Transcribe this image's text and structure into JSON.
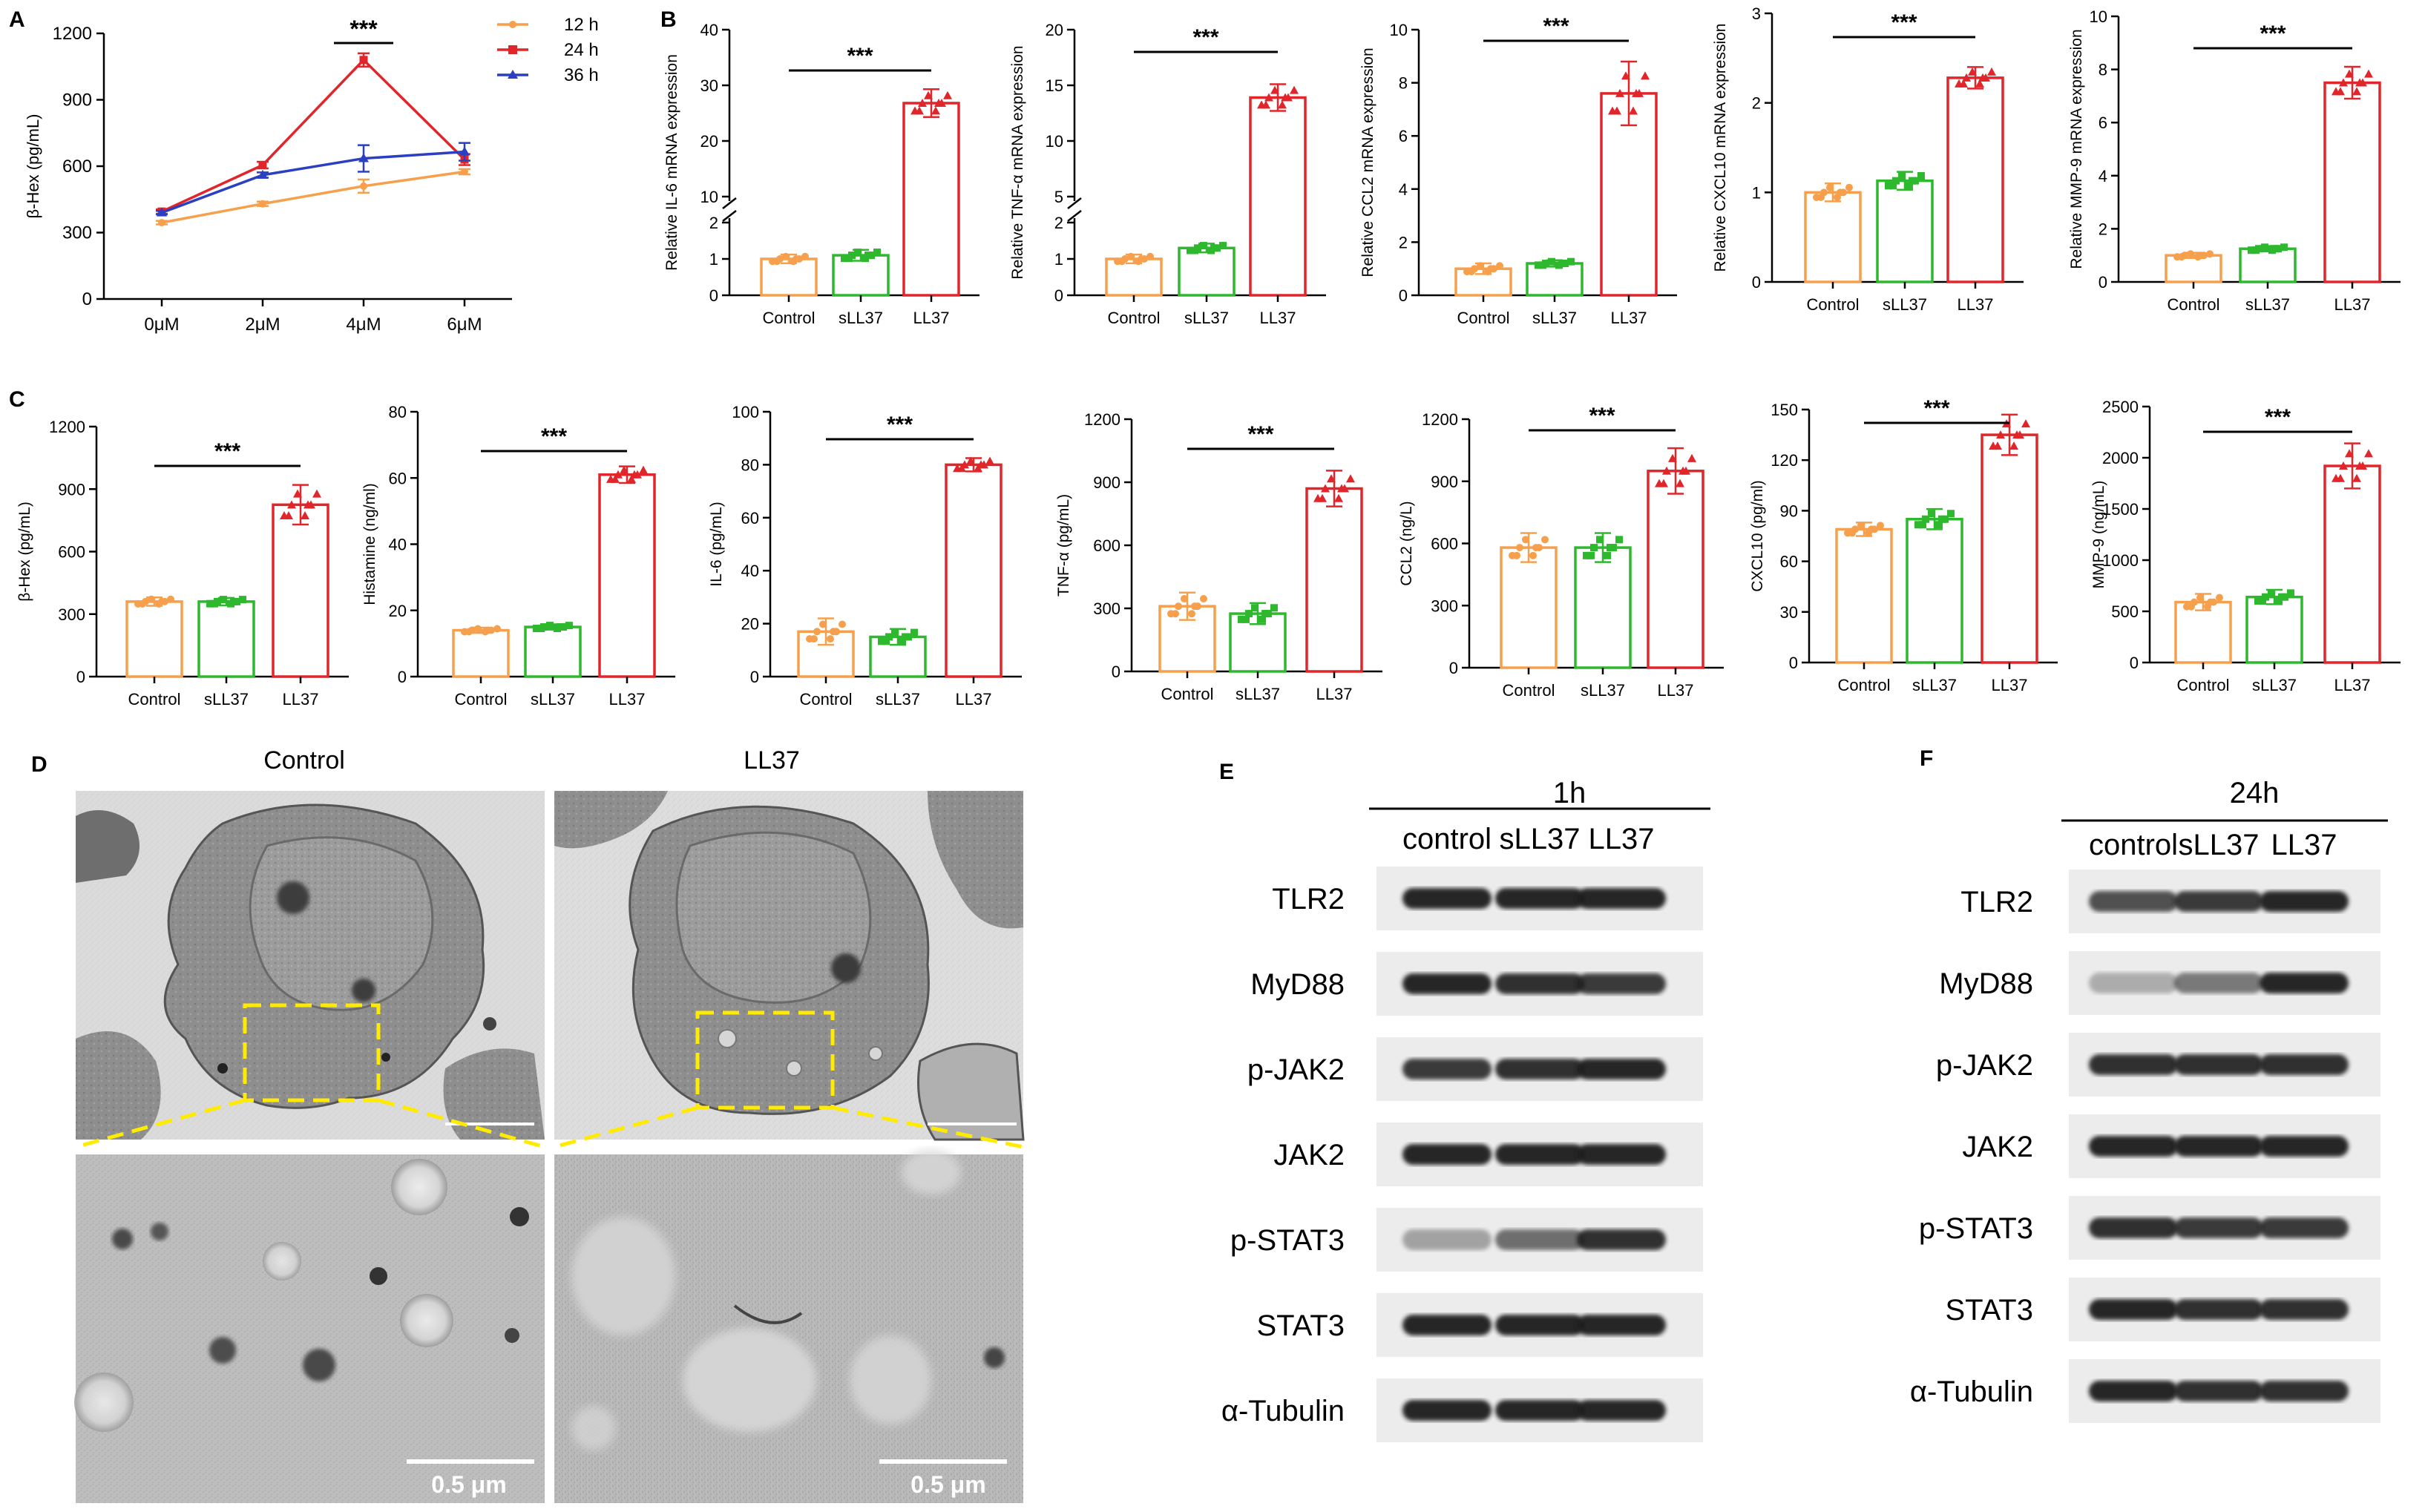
{
  "panel_letters": {
    "A": "A",
    "B": "B",
    "C": "C",
    "D": "D",
    "E": "E",
    "F": "F"
  },
  "group_labels": [
    "Control",
    "sLL37",
    "LL37"
  ],
  "group_colors": [
    "#f6a04d",
    "#2eb82e",
    "#e0262b"
  ],
  "significance": "***",
  "chart_data": [
    {
      "id": "A",
      "type": "line",
      "ylabel": "β-Hex (pg/mL)",
      "xlabel": "",
      "categories": [
        "0μM",
        "2μM",
        "4μM",
        "6μM"
      ],
      "ylim": [
        0,
        1200
      ],
      "yticks": [
        0,
        300,
        600,
        900,
        1200
      ],
      "legend_position": "top-right",
      "series": [
        {
          "name": "12 h",
          "color": "#f6a04d",
          "values": [
            345,
            430,
            510,
            575
          ],
          "errors": [
            8,
            10,
            30,
            12
          ]
        },
        {
          "name": "24 h",
          "color": "#e0262b",
          "values": [
            395,
            605,
            1080,
            630
          ],
          "errors": [
            10,
            15,
            30,
            25
          ]
        },
        {
          "name": "36 h",
          "color": "#2a3fc2",
          "values": [
            390,
            560,
            635,
            665
          ],
          "errors": [
            8,
            12,
            60,
            40
          ]
        }
      ],
      "annotations": [
        {
          "text": "***",
          "x": "4μM"
        }
      ]
    },
    {
      "id": "B1",
      "type": "bar",
      "ylabel": "Relative IL-6 mRNA expression",
      "categories": [
        "Control",
        "sLL37",
        "LL37"
      ],
      "values": [
        1.0,
        1.1,
        26.8
      ],
      "errors": [
        0.12,
        0.15,
        2.5
      ],
      "broken_axis": true,
      "lower_ticks": [
        0,
        1,
        2
      ],
      "upper_ticks": [
        10,
        20,
        30,
        40
      ],
      "upper_range": [
        10,
        40
      ],
      "significance": "***"
    },
    {
      "id": "B2",
      "type": "bar",
      "ylabel": "Relative TNF-α mRNA expression",
      "categories": [
        "Control",
        "sLL37",
        "LL37"
      ],
      "values": [
        1.0,
        1.3,
        13.9
      ],
      "errors": [
        0.12,
        0.12,
        1.2
      ],
      "broken_axis": true,
      "lower_ticks": [
        0,
        1,
        2
      ],
      "upper_ticks": [
        5,
        10,
        15,
        20
      ],
      "upper_range": [
        5,
        20
      ],
      "significance": "***"
    },
    {
      "id": "B3",
      "type": "bar",
      "ylabel": "Relative CCL2 mRNA expression",
      "categories": [
        "Control",
        "sLL37",
        "LL37"
      ],
      "values": [
        1.0,
        1.2,
        7.6
      ],
      "errors": [
        0.2,
        0.12,
        1.2
      ],
      "ylim": [
        0,
        10
      ],
      "yticks": [
        0,
        2,
        4,
        6,
        8,
        10
      ],
      "significance": "***"
    },
    {
      "id": "B4",
      "type": "bar",
      "ylabel": "Relative CXCL10 mRNA expression",
      "categories": [
        "Control",
        "sLL37",
        "LL37"
      ],
      "values": [
        1.0,
        1.13,
        2.28
      ],
      "errors": [
        0.1,
        0.1,
        0.12
      ],
      "ylim": [
        0,
        3
      ],
      "yticks": [
        0,
        1,
        2,
        3
      ],
      "significance": "***"
    },
    {
      "id": "B5",
      "type": "bar",
      "ylabel": "Relative MMP-9 mRNA expression",
      "categories": [
        "Control",
        "sLL37",
        "LL37"
      ],
      "values": [
        1.0,
        1.25,
        7.5
      ],
      "errors": [
        0.1,
        0.1,
        0.6
      ],
      "ylim": [
        0,
        10
      ],
      "yticks": [
        0,
        2,
        4,
        6,
        8,
        10
      ],
      "significance": "***"
    },
    {
      "id": "C1",
      "type": "bar",
      "ylabel": "β-Hex (pg/mL)",
      "categories": [
        "Control",
        "sLL37",
        "LL37"
      ],
      "values": [
        360,
        360,
        825
      ],
      "errors": [
        20,
        18,
        95
      ],
      "ylim": [
        0,
        1200
      ],
      "yticks": [
        0,
        300,
        600,
        900,
        1200
      ],
      "significance": "***"
    },
    {
      "id": "C2",
      "type": "bar",
      "ylabel": "Histamine (ng/ml)",
      "categories": [
        "Control",
        "sLL37",
        "LL37"
      ],
      "values": [
        14,
        15,
        61
      ],
      "errors": [
        0.8,
        0.8,
        2.5
      ],
      "ylim": [
        0,
        80
      ],
      "yticks": [
        0,
        20,
        40,
        60,
        80
      ],
      "significance": "***"
    },
    {
      "id": "C3",
      "type": "bar",
      "ylabel": "IL-6 (pg/mL)",
      "categories": [
        "Control",
        "sLL37",
        "LL37"
      ],
      "values": [
        17,
        15,
        80
      ],
      "errors": [
        5,
        3,
        2.5
      ],
      "ylim": [
        0,
        100
      ],
      "yticks": [
        0,
        20,
        40,
        60,
        80,
        100
      ],
      "significance": "***"
    },
    {
      "id": "C4",
      "type": "bar",
      "ylabel": "TNF-α (pg/mL)",
      "categories": [
        "Control",
        "sLL37",
        "LL37"
      ],
      "values": [
        310,
        275,
        870
      ],
      "errors": [
        65,
        50,
        85
      ],
      "ylim": [
        0,
        1200
      ],
      "yticks": [
        0,
        300,
        600,
        900,
        1200
      ],
      "significance": "***"
    },
    {
      "id": "C5",
      "type": "bar",
      "ylabel": "CCL2 (ng/L)",
      "categories": [
        "Control",
        "sLL37",
        "LL37"
      ],
      "values": [
        580,
        580,
        950
      ],
      "errors": [
        70,
        70,
        110
      ],
      "ylim": [
        0,
        1200
      ],
      "yticks": [
        0,
        300,
        600,
        900,
        1200
      ],
      "significance": "***"
    },
    {
      "id": "C6",
      "type": "bar",
      "ylabel": "CXCL10 (pg/ml)",
      "categories": [
        "Control",
        "sLL37",
        "LL37"
      ],
      "values": [
        79,
        85,
        135
      ],
      "errors": [
        4,
        6,
        12
      ],
      "ylim": [
        0,
        150
      ],
      "yticks": [
        0,
        30,
        60,
        90,
        120,
        150
      ],
      "significance": "***"
    },
    {
      "id": "C7",
      "type": "bar",
      "ylabel": "MMP-9 (ng/mL)",
      "categories": [
        "Control",
        "sLL37",
        "LL37"
      ],
      "values": [
        590,
        640,
        1920
      ],
      "errors": [
        80,
        70,
        220
      ],
      "ylim": [
        0,
        2500
      ],
      "yticks": [
        0,
        500,
        1000,
        1500,
        2000,
        2500
      ],
      "significance": "***"
    }
  ],
  "em_panel": {
    "titles": [
      "Control",
      "LL37"
    ],
    "scale_bar_label": "0.5 μm"
  },
  "western_E": {
    "time": "1h",
    "lanes": [
      "control",
      "sLL37",
      "LL37"
    ],
    "proteins": [
      "TLR2",
      "MyD88",
      "p-JAK2",
      "JAK2",
      "p-STAT3",
      "STAT3",
      "α-Tubulin"
    ]
  },
  "western_F": {
    "time": "24h",
    "lanes": [
      "control",
      "sLL37",
      "LL37"
    ],
    "proteins": [
      "TLR2",
      "MyD88",
      "p-JAK2",
      "JAK2",
      "p-STAT3",
      "STAT3",
      "α-Tubulin"
    ]
  }
}
